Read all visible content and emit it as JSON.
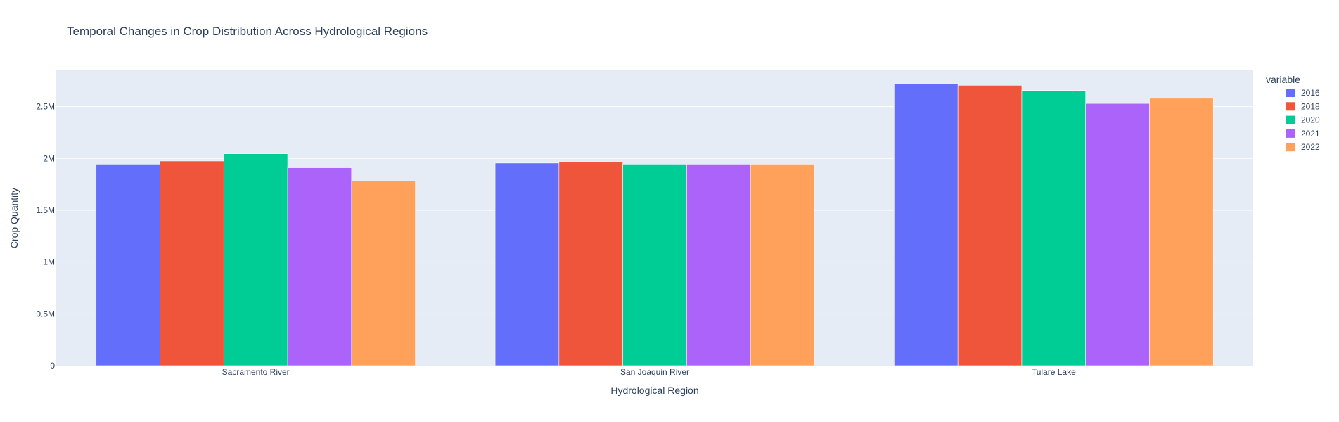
{
  "chart_data": {
    "type": "bar",
    "title": "Temporal Changes in Crop Distribution Across Hydrological Regions",
    "xlabel": "Hydrological Region",
    "ylabel": "Crop Quantity",
    "categories": [
      "Sacramento River",
      "San Joaquin River",
      "Tulare Lake"
    ],
    "ylim": [
      0,
      2850000
    ],
    "yticks": [
      {
        "value": 0,
        "label": "0"
      },
      {
        "value": 500000,
        "label": "0.5M"
      },
      {
        "value": 1000000,
        "label": "1M"
      },
      {
        "value": 1500000,
        "label": "1.5M"
      },
      {
        "value": 2000000,
        "label": "2M"
      },
      {
        "value": 2500000,
        "label": "2.5M"
      }
    ],
    "legend_title": "variable",
    "legend_position": "top-right",
    "grid": true,
    "plot_background": "#e5ecf6",
    "series": [
      {
        "name": "2016",
        "color": "#636efa",
        "values": [
          1945000,
          1955000,
          2720000
        ]
      },
      {
        "name": "2018",
        "color": "#ef553b",
        "values": [
          1975000,
          1965000,
          2705000
        ]
      },
      {
        "name": "2020",
        "color": "#00cc96",
        "values": [
          2045000,
          1945000,
          2655000
        ]
      },
      {
        "name": "2021",
        "color": "#ab63fa",
        "values": [
          1910000,
          1945000,
          2530000
        ]
      },
      {
        "name": "2022",
        "color": "#ffa15a",
        "values": [
          1780000,
          1945000,
          2580000
        ]
      }
    ]
  }
}
